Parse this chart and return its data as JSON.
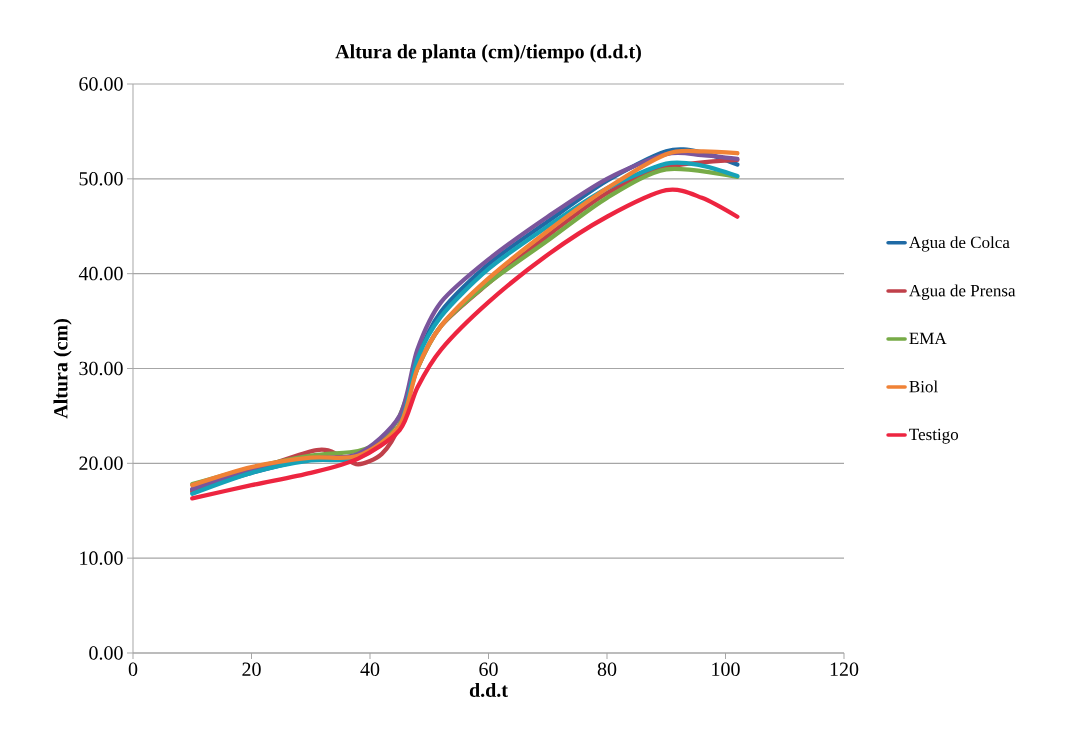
{
  "chart_data": {
    "type": "line",
    "title": "Altura de planta (cm)/tiempo (d.d.t)",
    "xlabel": "d.d.t",
    "ylabel": "Altura (cm)",
    "x": [
      10,
      20,
      30,
      38,
      45,
      48,
      52,
      60,
      70,
      80,
      90,
      96,
      102
    ],
    "series": [
      {
        "name": "Agua de Colca",
        "color": "#1f6aa5",
        "values": [
          17.2,
          19.0,
          20.5,
          20.8,
          24.0,
          31.0,
          36.0,
          41.0,
          45.5,
          49.8,
          52.9,
          52.8,
          51.5
        ]
      },
      {
        "name": "Agua de Prensa",
        "color": "#c0404a",
        "x": [
          10,
          20,
          31,
          35,
          38,
          42,
          45,
          48,
          52,
          60,
          70,
          80,
          90,
          102
        ],
        "values": [
          17.0,
          19.2,
          21.4,
          20.8,
          19.9,
          21.0,
          24.0,
          30.0,
          34.5,
          39.0,
          44.0,
          48.5,
          51.2,
          52.0
        ]
      },
      {
        "name": "EMA",
        "color": "#77ab47",
        "x": [
          10,
          20,
          30,
          38,
          42,
          45,
          48,
          52,
          60,
          70,
          80,
          90,
          102
        ],
        "values": [
          17.8,
          19.5,
          20.8,
          21.3,
          22.5,
          25.0,
          30.0,
          34.5,
          39.0,
          43.5,
          48.0,
          51.0,
          50.2
        ]
      },
      {
        "color": "#7a559c",
        "values": [
          17.3,
          19.3,
          20.5,
          21.0,
          25.0,
          32.0,
          37.0,
          41.5,
          46.0,
          50.0,
          52.6,
          52.5,
          52.1
        ]
      },
      {
        "color": "#16a2b8",
        "values": [
          16.8,
          19.0,
          20.3,
          20.6,
          24.0,
          31.0,
          35.5,
          40.5,
          45.0,
          49.0,
          51.6,
          51.4,
          50.3
        ]
      },
      {
        "name": "Biol",
        "color": "#f08236",
        "values": [
          17.7,
          19.6,
          20.6,
          20.8,
          24.0,
          30.0,
          34.5,
          39.5,
          44.5,
          49.0,
          52.6,
          52.9,
          52.7
        ]
      },
      {
        "name": "Testigo",
        "color": "#ed2540",
        "values": [
          16.3,
          17.7,
          19.0,
          20.5,
          23.5,
          28.0,
          32.0,
          37.0,
          42.0,
          46.0,
          48.8,
          48.0,
          46.0
        ]
      }
    ],
    "xlim": [
      0,
      120
    ],
    "ylim": [
      0,
      60
    ],
    "xticks": [
      0,
      20,
      40,
      60,
      80,
      100,
      120
    ],
    "yticks": [
      {
        "value": 0,
        "label": "0.00"
      },
      {
        "value": 10,
        "label": "10.00"
      },
      {
        "value": 20,
        "label": "20.00"
      },
      {
        "value": 30,
        "label": "30.00"
      },
      {
        "value": 40,
        "label": "40.00"
      },
      {
        "value": 50,
        "label": "50.00"
      },
      {
        "value": 60,
        "label": "60.00"
      }
    ],
    "grid": "y",
    "legend": "right",
    "marker": "none",
    "line_style": "solid"
  }
}
